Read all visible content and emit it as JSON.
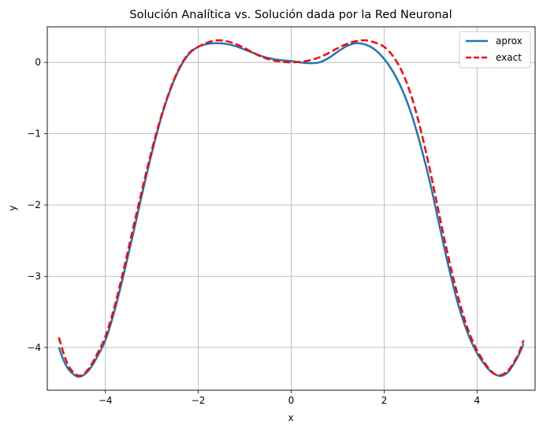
{
  "chart_data": {
    "type": "line",
    "title": "Solución Analítica vs. Solución dada por la Red Neuronal",
    "xlabel": "x",
    "ylabel": "y",
    "xlim": [
      -5.25,
      5.25
    ],
    "ylim": [
      -4.6,
      0.5
    ],
    "xticks": [
      -4,
      -2,
      0,
      2,
      4
    ],
    "xtick_labels": [
      "−4",
      "−2",
      "0",
      "2",
      "4"
    ],
    "yticks": [
      0,
      -1,
      -2,
      -3,
      -4
    ],
    "ytick_labels": [
      "0",
      "−1",
      "−2",
      "−3",
      "−4"
    ],
    "grid": true,
    "legend_position": "upper right",
    "series": [
      {
        "name": "aprox",
        "color": "#1f77b4",
        "style": "solid",
        "x": [
          -5.0,
          -4.9,
          -4.8,
          -4.7,
          -4.6,
          -4.5,
          -4.4,
          -4.3,
          -4.2,
          -4.0,
          -3.8,
          -3.6,
          -3.4,
          -3.2,
          -3.0,
          -2.8,
          -2.6,
          -2.4,
          -2.2,
          -2.0,
          -1.8,
          -1.6,
          -1.4,
          -1.2,
          -1.0,
          -0.8,
          -0.6,
          -0.4,
          -0.2,
          0.0,
          0.2,
          0.4,
          0.6,
          0.8,
          1.0,
          1.2,
          1.4,
          1.6,
          1.8,
          2.0,
          2.2,
          2.4,
          2.6,
          2.8,
          3.0,
          3.2,
          3.4,
          3.6,
          3.8,
          4.0,
          4.2,
          4.3,
          4.4,
          4.5,
          4.6,
          4.7,
          4.8,
          4.9,
          5.0
        ],
        "y": [
          -4.0,
          -4.18,
          -4.3,
          -4.37,
          -4.41,
          -4.4,
          -4.35,
          -4.27,
          -4.16,
          -3.9,
          -3.48,
          -2.96,
          -2.4,
          -1.82,
          -1.27,
          -0.78,
          -0.38,
          -0.08,
          0.12,
          0.22,
          0.26,
          0.27,
          0.26,
          0.23,
          0.18,
          0.13,
          0.08,
          0.05,
          0.03,
          0.02,
          0.0,
          -0.01,
          0.0,
          0.06,
          0.15,
          0.23,
          0.27,
          0.25,
          0.18,
          0.05,
          -0.14,
          -0.4,
          -0.75,
          -1.2,
          -1.72,
          -2.32,
          -2.9,
          -3.41,
          -3.8,
          -4.08,
          -4.27,
          -4.34,
          -4.38,
          -4.4,
          -4.38,
          -4.32,
          -4.22,
          -4.1,
          -3.95
        ]
      },
      {
        "name": "exact",
        "color": "#ff0000",
        "style": "dashed",
        "x": [
          -5.0,
          -4.9,
          -4.8,
          -4.7,
          -4.6,
          -4.5,
          -4.4,
          -4.3,
          -4.2,
          -4.0,
          -3.8,
          -3.6,
          -3.4,
          -3.2,
          -3.0,
          -2.8,
          -2.6,
          -2.4,
          -2.2,
          -2.0,
          -1.8,
          -1.6,
          -1.4,
          -1.2,
          -1.0,
          -0.8,
          -0.6,
          -0.4,
          -0.2,
          0.0,
          0.2,
          0.4,
          0.6,
          0.8,
          1.0,
          1.2,
          1.4,
          1.6,
          1.8,
          2.0,
          2.2,
          2.4,
          2.6,
          2.8,
          3.0,
          3.2,
          3.4,
          3.6,
          3.8,
          4.0,
          4.2,
          4.3,
          4.4,
          4.5,
          4.6,
          4.7,
          4.8,
          4.9,
          5.0
        ],
        "y": [
          -3.86,
          -4.08,
          -4.25,
          -4.34,
          -4.39,
          -4.39,
          -4.33,
          -4.24,
          -4.12,
          -3.85,
          -3.42,
          -2.89,
          -2.32,
          -1.76,
          -1.23,
          -0.76,
          -0.37,
          -0.07,
          0.13,
          0.22,
          0.28,
          0.31,
          0.3,
          0.26,
          0.2,
          0.13,
          0.07,
          0.03,
          0.01,
          0.0,
          0.01,
          0.03,
          0.07,
          0.13,
          0.2,
          0.26,
          0.3,
          0.31,
          0.28,
          0.22,
          0.08,
          -0.15,
          -0.5,
          -0.98,
          -1.55,
          -2.18,
          -2.78,
          -3.31,
          -3.74,
          -4.04,
          -4.25,
          -4.33,
          -4.38,
          -4.39,
          -4.36,
          -4.3,
          -4.2,
          -4.08,
          -3.9
        ]
      }
    ]
  }
}
